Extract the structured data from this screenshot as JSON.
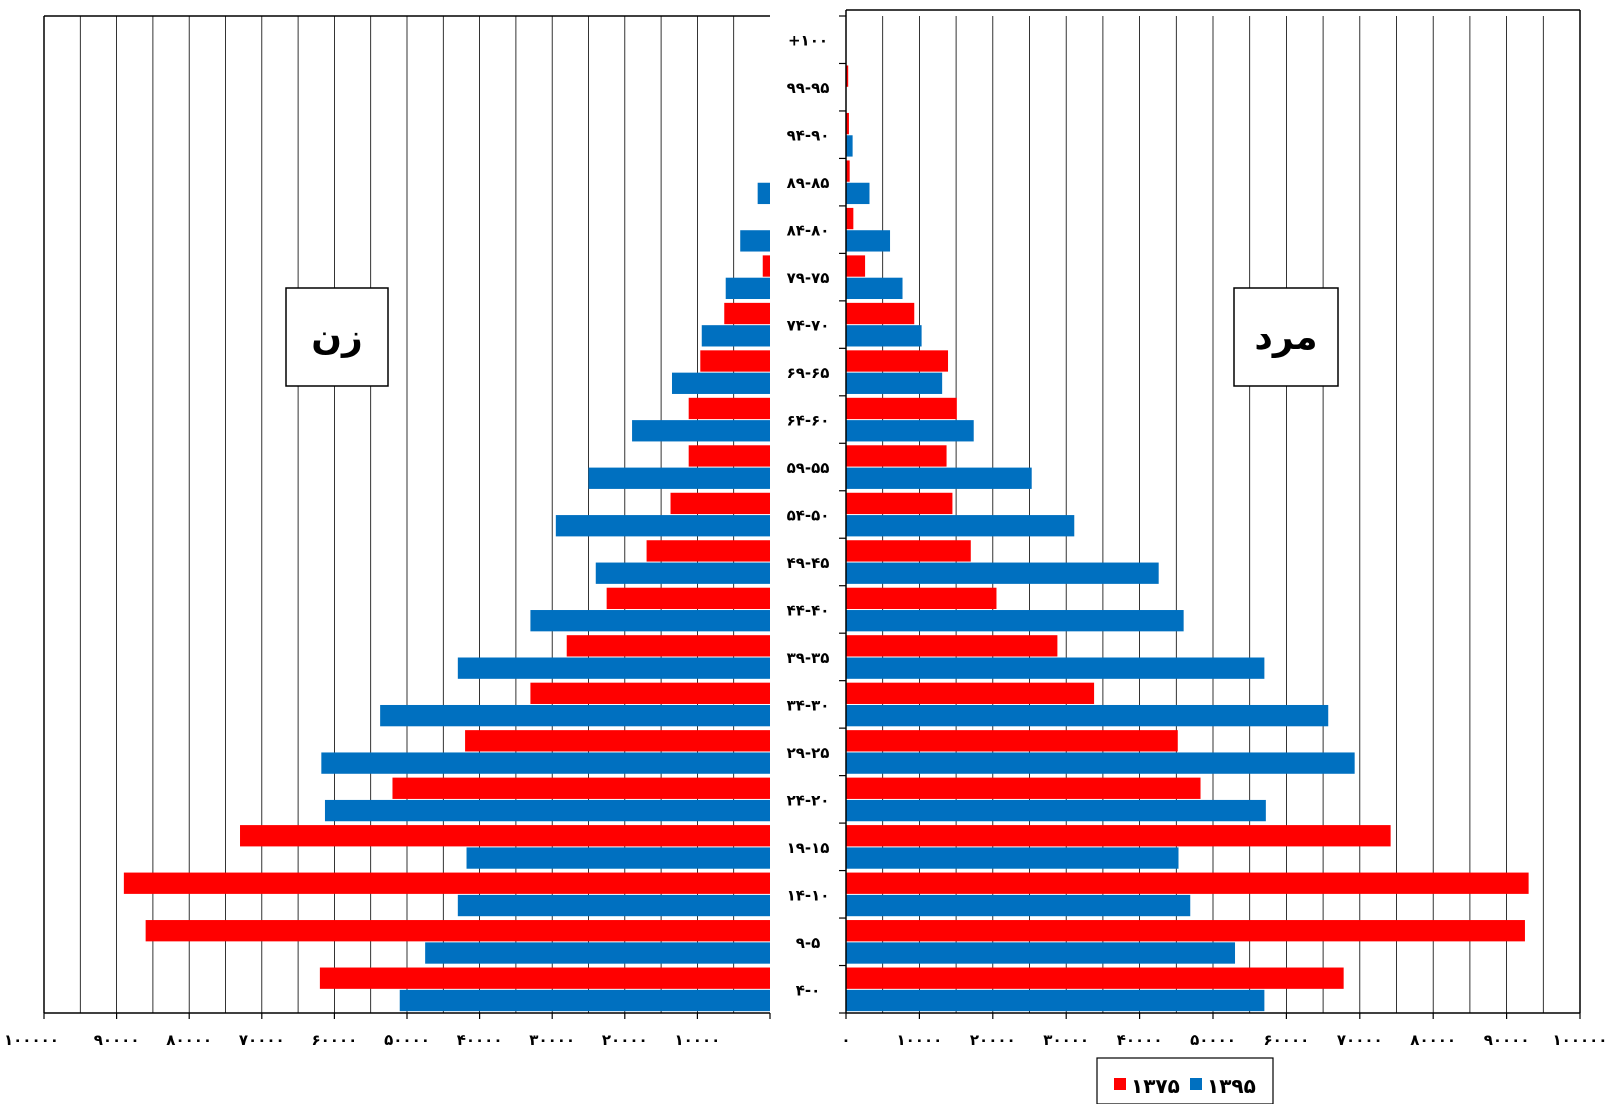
{
  "chart_data": {
    "type": "bar",
    "orientation": "horizontal",
    "layout": "population-pyramid",
    "categories": [
      "۴-۰",
      "۹-۵",
      "۱۴-۱۰",
      "۱۹-۱۵",
      "۲۴-۲۰",
      "۲۹-۲۵",
      "۳۴-۳۰",
      "۳۹-۳۵",
      "۴۴-۴۰",
      "۴۹-۴۵",
      "۵۴-۵۰",
      "۵۹-۵۵",
      "۶۴-۶۰",
      "۶۹-۶۵",
      "۷۴-۷۰",
      "۷۹-۷۵",
      "۸۴-۸۰",
      "۸۹-۸۵",
      "۹۴-۹۰",
      "۹۹-۹۵",
      "+۱۰۰"
    ],
    "panels": [
      {
        "side": "left",
        "title": "زن",
        "series": [
          {
            "name": "۱۳۷۵",
            "color": "#ff0000",
            "values": [
              62000,
              86000,
              89000,
              73000,
              52000,
              42000,
              33000,
              28000,
              22500,
              17000,
              13700,
              11200,
              11200,
              9600,
              6300,
              1000,
              0,
              0,
              0,
              0,
              0
            ]
          },
          {
            "name": "۱۳۹۵",
            "color": "#0070c0",
            "values": [
              51000,
              47500,
              43000,
              41800,
              61300,
              61800,
              53700,
              43000,
              33000,
              24000,
              29500,
              25000,
              19000,
              13500,
              9400,
              6100,
              4100,
              1700,
              0,
              0,
              0
            ]
          }
        ]
      },
      {
        "side": "right",
        "title": "مرد",
        "series": [
          {
            "name": "۱۳۷۵",
            "color": "#ff0000",
            "values": [
              67800,
              92500,
              93000,
              74200,
              48300,
              45200,
              33800,
              28800,
              20500,
              17000,
              14500,
              13700,
              15100,
              13900,
              9300,
              2600,
              1000,
              500,
              400,
              300,
              0
            ]
          },
          {
            "name": "۱۳۹۵",
            "color": "#0070c0",
            "values": [
              57000,
              53000,
              46900,
              45300,
              57200,
              69300,
              65700,
              57000,
              46000,
              42600,
              31100,
              25300,
              17400,
              13100,
              10300,
              7700,
              6000,
              3200,
              900,
              0,
              0
            ]
          }
        ]
      }
    ],
    "x_axis": {
      "range": [
        0,
        100000
      ],
      "major_step": 10000,
      "minor_step": 5000,
      "left_tick_labels": [
        "۱۰۰۰۰",
        "۲۰۰۰۰",
        "۳۰۰۰۰",
        "۴۰۰۰۰",
        "۵۰۰۰۰",
        "۶۰۰۰۰",
        "۷۰۰۰۰",
        "۸۰۰۰۰",
        "۹۰۰۰۰",
        "۱۰۰۰۰۰"
      ],
      "right_tick_labels": [
        "۰",
        "۱۰۰۰۰",
        "۲۰۰۰۰",
        "۳۰۰۰۰",
        "۴۰۰۰۰",
        "۵۰۰۰۰",
        "۶۰۰۰۰",
        "۷۰۰۰۰",
        "۸۰۰۰۰",
        "۹۰۰۰۰",
        "۱۰۰۰۰۰"
      ]
    },
    "grid": true,
    "legend": {
      "position": "bottom-center",
      "entries": [
        "۱۳۷۵",
        "۱۳۹۵"
      ]
    }
  }
}
